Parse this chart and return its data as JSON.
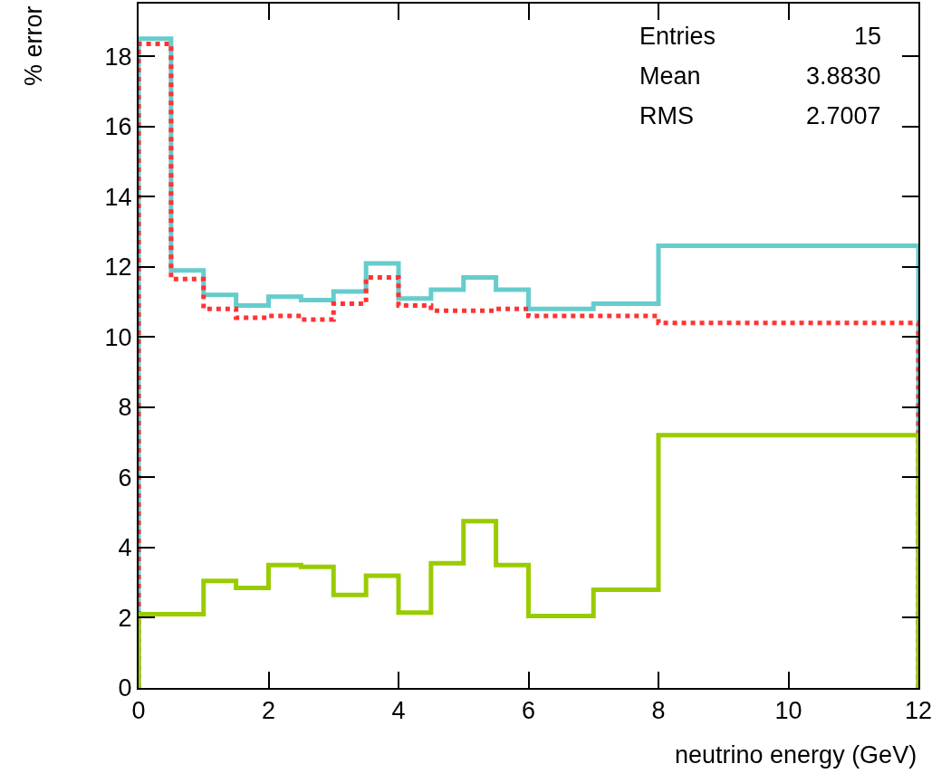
{
  "chart_data": {
    "type": "histogram",
    "xlabel": "neutrino energy (GeV)",
    "ylabel": "% error",
    "bins": [
      0,
      0.5,
      1,
      1.5,
      2,
      2.5,
      3,
      3.5,
      4,
      4.5,
      5,
      5.5,
      6,
      7,
      8,
      12
    ],
    "series": [
      {
        "color": "#66cccc",
        "line_style": "solid",
        "values": [
          18.5,
          11.9,
          11.2,
          10.9,
          11.15,
          11.05,
          11.3,
          12.1,
          11.1,
          11.35,
          11.7,
          11.35,
          10.8,
          10.95,
          12.6
        ]
      },
      {
        "color": "#ff3333",
        "line_style": "dotted",
        "values": [
          18.35,
          11.65,
          10.8,
          10.55,
          10.6,
          10.5,
          10.95,
          11.7,
          10.9,
          10.75,
          10.75,
          10.8,
          10.6,
          10.6,
          10.4
        ]
      },
      {
        "color": "#99cc00",
        "line_style": "solid",
        "values": [
          2.1,
          2.1,
          3.05,
          2.85,
          3.5,
          3.45,
          2.65,
          3.2,
          2.15,
          3.55,
          4.75,
          3.5,
          2.05,
          2.8,
          7.2
        ]
      }
    ],
    "xlim": [
      0,
      12
    ],
    "xticks": [
      0,
      2,
      4,
      6,
      8,
      10,
      12
    ],
    "ylim": [
      0,
      19.5
    ],
    "yticks": [
      0,
      2,
      4,
      6,
      8,
      10,
      12,
      14,
      16,
      18
    ],
    "annotations": [
      "Entries 15",
      "Mean 3.8830",
      "RMS 2.7007"
    ]
  }
}
